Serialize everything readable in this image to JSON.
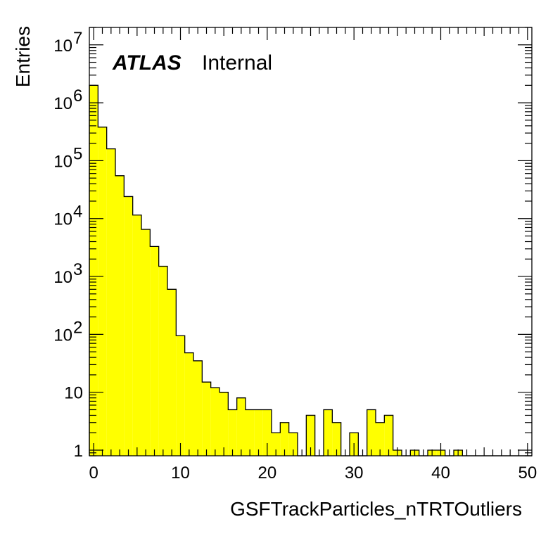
{
  "chart_data": {
    "type": "bar",
    "title": "",
    "xlabel": "GSFTrackParticles_nTRTOutliers",
    "ylabel": "Entries",
    "log_y": true,
    "xlim": [
      -0.5,
      50.5
    ],
    "ylim": [
      0.8,
      20000000
    ],
    "bin_width": 1,
    "x_ticks": [
      0,
      10,
      20,
      30,
      40,
      50
    ],
    "x_tick_labels": [
      "0",
      "10",
      "20",
      "30",
      "40",
      "50"
    ],
    "y_ticks": [
      1,
      10,
      100,
      1000,
      10000,
      100000,
      1000000,
      10000000
    ],
    "y_tick_labels": [
      {
        "base": "1",
        "exp": ""
      },
      {
        "base": "10",
        "exp": ""
      },
      {
        "base": "10",
        "exp": "2"
      },
      {
        "base": "10",
        "exp": "3"
      },
      {
        "base": "10",
        "exp": "4"
      },
      {
        "base": "10",
        "exp": "5"
      },
      {
        "base": "10",
        "exp": "6"
      },
      {
        "base": "10",
        "exp": "7"
      }
    ],
    "fill_color": "#ffff00",
    "line_color": "#000000",
    "bins": [
      0,
      1,
      2,
      3,
      4,
      5,
      6,
      7,
      8,
      9,
      10,
      11,
      12,
      13,
      14,
      15,
      16,
      17,
      18,
      19,
      20,
      21,
      22,
      23,
      24,
      25,
      26,
      27,
      28,
      29,
      30,
      31,
      32,
      33,
      34,
      35,
      36,
      37,
      38,
      39,
      40,
      41,
      42,
      43,
      44,
      45,
      46,
      47,
      48,
      49,
      50
    ],
    "values": [
      2000000,
      380000,
      160000,
      55000,
      24000,
      11500,
      6500,
      3300,
      1500,
      600,
      95,
      48,
      35,
      15,
      12,
      10,
      5,
      8,
      5,
      5,
      5,
      2,
      3,
      2,
      0,
      4,
      0,
      5,
      3,
      0,
      2,
      0,
      5,
      3,
      4,
      1,
      0,
      1,
      0,
      1,
      1,
      0,
      1,
      0,
      0,
      0,
      0,
      0,
      0,
      0,
      0
    ],
    "grid": false,
    "legend": "none",
    "label": {
      "experiment": "ATLAS",
      "status": "Internal"
    }
  }
}
